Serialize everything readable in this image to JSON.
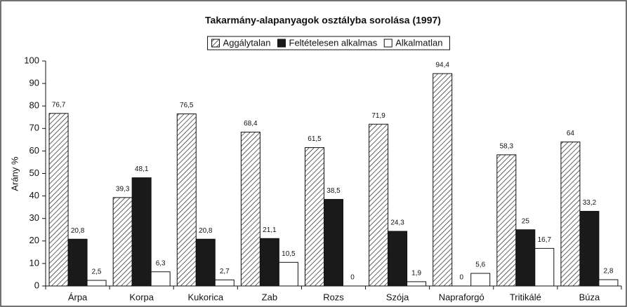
{
  "chart_data": {
    "type": "bar",
    "title": "Takarmány-alapanyagok osztályba sorolása (1997)",
    "y_label": "Arány %",
    "categories": [
      "Árpa",
      "Korpa",
      "Kukorica",
      "Zab",
      "Rozs",
      "Szója",
      "Napraforgó",
      "Tritikálé",
      "Búza"
    ],
    "series": [
      {
        "name": "Aggálytalan",
        "color": "#ffffff",
        "pattern": "hatch",
        "values": [
          76.7,
          39.3,
          76.5,
          68.4,
          61.5,
          71.9,
          94.4,
          58.3,
          64
        ],
        "value_labels": [
          "76,7",
          "39,3",
          "76,5",
          "68,4",
          "61,5",
          "71,9",
          "94,4",
          "58,3",
          "64"
        ]
      },
      {
        "name": "Feltételesen alkalmas",
        "color": "#1a1a1a",
        "values": [
          20.8,
          48.1,
          20.8,
          21.1,
          38.5,
          24.3,
          0,
          25,
          33.2
        ],
        "value_labels": [
          "20,8",
          "48,1",
          "20,8",
          "21,1",
          "38,5",
          "24,3",
          "0",
          "25",
          "33,2"
        ]
      },
      {
        "name": "Alkalmatlan",
        "color": "#ffffff",
        "values": [
          2.5,
          6.3,
          2.7,
          10.5,
          0,
          1.9,
          5.6,
          16.7,
          2.8
        ],
        "value_labels": [
          "2,5",
          "6,3",
          "2,7",
          "10,5",
          "0",
          "1,9",
          "5,6",
          "16,7",
          "2,8"
        ]
      }
    ],
    "ylim": [
      0,
      100
    ],
    "yticks": [
      0,
      10,
      20,
      30,
      40,
      50,
      60,
      70,
      80,
      90,
      100
    ],
    "grid": false,
    "legend": "top"
  }
}
